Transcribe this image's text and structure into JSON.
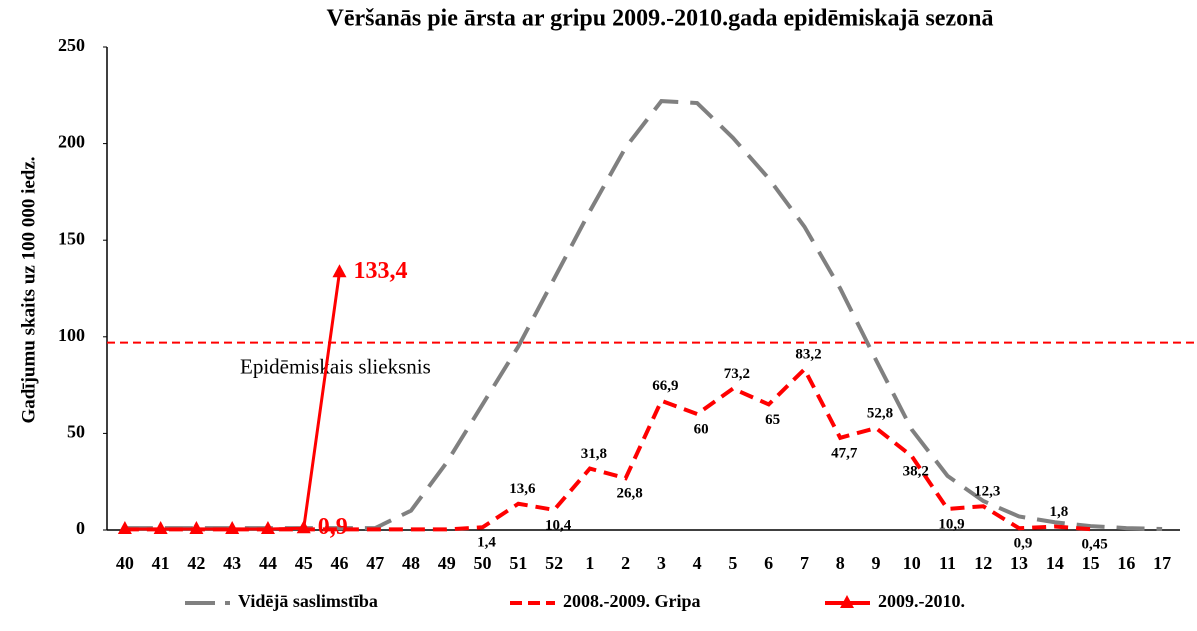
{
  "chart_data": {
    "type": "line",
    "title": "Vēršanās pie ārsta ar gripu 2009.-2010.gada epidēmiskajā sezonā",
    "y_label": "Gadījumu skaits uz 100 000 iedz.",
    "categories": [
      "40",
      "41",
      "42",
      "43",
      "44",
      "45",
      "46",
      "47",
      "48",
      "49",
      "50",
      "51",
      "52",
      "1",
      "2",
      "3",
      "4",
      "5",
      "6",
      "7",
      "8",
      "9",
      "10",
      "11",
      "12",
      "13",
      "14",
      "15",
      "16",
      "17"
    ],
    "ylim": [
      0,
      250
    ],
    "yticks": [
      0,
      50,
      100,
      150,
      200,
      250
    ],
    "legend": "bottom",
    "threshold": {
      "value": 97,
      "label": "Epidēmiskais slieksnis",
      "color": "#ff0000"
    },
    "series": [
      {
        "name": "Vidējā saslimstība",
        "color": "#808080",
        "style": "dashed",
        "values": [
          1,
          1,
          1,
          1,
          1,
          1,
          1,
          1,
          10,
          35,
          65,
          95,
          130,
          165,
          198,
          222,
          221,
          203,
          182,
          157,
          125,
          88,
          52,
          28,
          15,
          7,
          4,
          2,
          1,
          0.5
        ]
      },
      {
        "name": "2008.-2009. Gripa",
        "color": "#ff0000",
        "style": "dashed",
        "values": [
          0.3,
          0.3,
          0.3,
          0.3,
          0.3,
          0.3,
          0.3,
          0.3,
          0.3,
          0.3,
          1.4,
          13.6,
          10.4,
          31.8,
          26.8,
          66.9,
          60,
          73.2,
          65,
          83.2,
          47.7,
          52.8,
          38.2,
          10.9,
          12.3,
          0.9,
          1.8,
          0.45,
          null,
          null
        ],
        "value_labels": [
          null,
          null,
          null,
          null,
          null,
          null,
          null,
          null,
          null,
          null,
          "1,4",
          "13,6",
          "10,4",
          "31,8",
          "26,8",
          "66,9",
          "60",
          "73,2",
          "65",
          "83,2",
          "47,7",
          "52,8",
          "38,2",
          "10,9",
          "12,3",
          "0,9",
          "1,8",
          "0,45",
          null,
          null
        ]
      },
      {
        "name": "2009.-2010.",
        "color": "#ff0000",
        "style": "solid",
        "marker": "triangle",
        "values": [
          0.5,
          0.5,
          0.5,
          0.5,
          0.5,
          0.9,
          133.4,
          null,
          null,
          null,
          null,
          null,
          null,
          null,
          null,
          null,
          null,
          null,
          null,
          null,
          null,
          null,
          null,
          null,
          null,
          null,
          null,
          null,
          null,
          null
        ],
        "value_labels": [
          null,
          null,
          null,
          null,
          null,
          "0,9",
          "133,4",
          null,
          null,
          null,
          null,
          null,
          null,
          null,
          null,
          null,
          null,
          null,
          null,
          null,
          null,
          null,
          null,
          null,
          null,
          null,
          null,
          null,
          null,
          null
        ]
      }
    ]
  }
}
